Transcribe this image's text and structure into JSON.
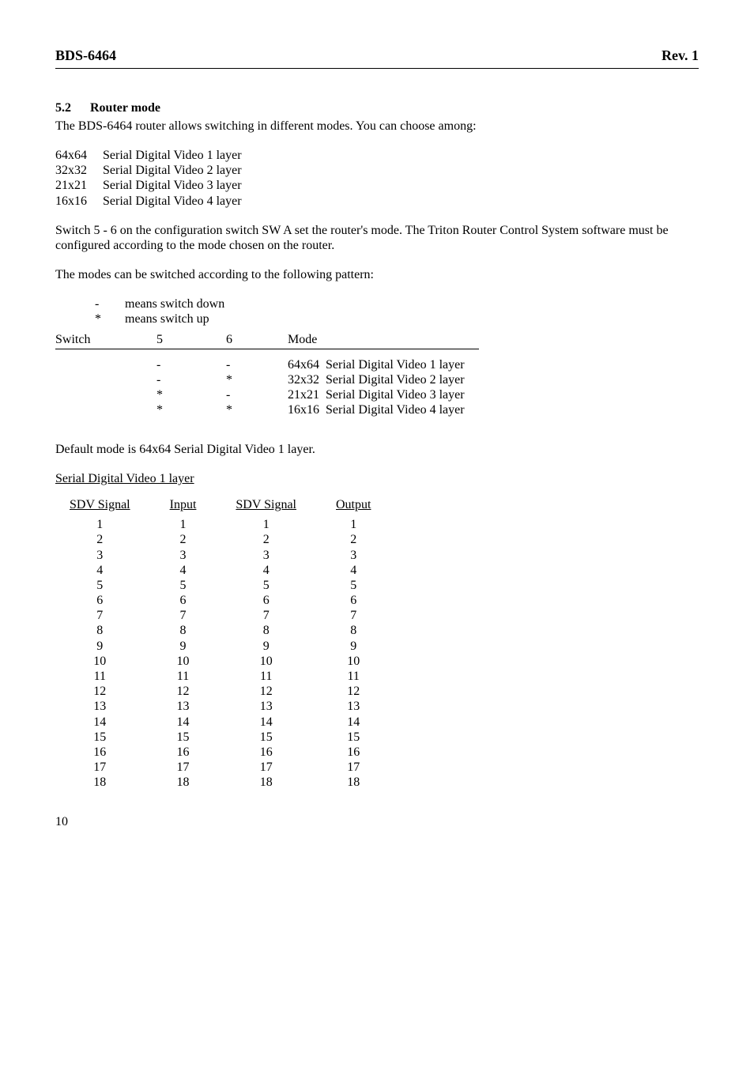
{
  "header": {
    "left": "BDS-6464",
    "right": "Rev. 1"
  },
  "section": {
    "number": "5.2",
    "title": "Router mode"
  },
  "intro": "The BDS-6464 router allows switching in different modes. You can choose among:",
  "layers": [
    {
      "size": "64x64",
      "desc": "Serial Digital Video 1 layer"
    },
    {
      "size": "32x32",
      "desc": "Serial Digital Video 2 layer"
    },
    {
      "size": "21x21",
      "desc": "Serial Digital Video 3 layer"
    },
    {
      "size": "16x16",
      "desc": "Serial Digital Video 4 layer"
    }
  ],
  "switch_note": "Switch 5 - 6 on the configuration switch SW A set the router's mode. The Triton Router Control System software must be configured according to the mode chosen on the router.",
  "pattern_note": "The modes can be switched according to the following pattern:",
  "legend": [
    {
      "sym": "-",
      "meaning": "means switch down"
    },
    {
      "sym": "*",
      "meaning": "means switch up"
    }
  ],
  "mode_header": {
    "label": "Switch",
    "c5": "5",
    "c6": "6",
    "mode": "Mode"
  },
  "modes": [
    {
      "c5": "-",
      "c6": "-",
      "size": "64x64",
      "desc": "Serial Digital Video 1 layer"
    },
    {
      "c5": "-",
      "c6": "*",
      "size": "32x32",
      "desc": "Serial Digital Video 2 layer"
    },
    {
      "c5": "*",
      "c6": "-",
      "size": "21x21",
      "desc": "Serial Digital Video 3 layer"
    },
    {
      "c5": "*",
      "c6": "*",
      "size": "16x16",
      "desc": "Serial Digital Video 4 layer"
    }
  ],
  "default_note": "Default mode is 64x64 Serial Digital Video 1 layer.",
  "sdv_heading": "Serial Digital Video 1 layer",
  "sdv_header": {
    "c1": "SDV Signal",
    "c2": "Input",
    "c3": "SDV Signal",
    "c4": "Output"
  },
  "sdv_rows": [
    [
      1,
      1,
      1,
      1
    ],
    [
      2,
      2,
      2,
      2
    ],
    [
      3,
      3,
      3,
      3
    ],
    [
      4,
      4,
      4,
      4
    ],
    [
      5,
      5,
      5,
      5
    ],
    [
      6,
      6,
      6,
      6
    ],
    [
      7,
      7,
      7,
      7
    ],
    [
      8,
      8,
      8,
      8
    ],
    [
      9,
      9,
      9,
      9
    ],
    [
      10,
      10,
      10,
      10
    ],
    [
      11,
      11,
      11,
      11
    ],
    [
      12,
      12,
      12,
      12
    ],
    [
      13,
      13,
      13,
      13
    ],
    [
      14,
      14,
      14,
      14
    ],
    [
      15,
      15,
      15,
      15
    ],
    [
      16,
      16,
      16,
      16
    ],
    [
      17,
      17,
      17,
      17
    ],
    [
      18,
      18,
      18,
      18
    ]
  ],
  "page_number": "10"
}
